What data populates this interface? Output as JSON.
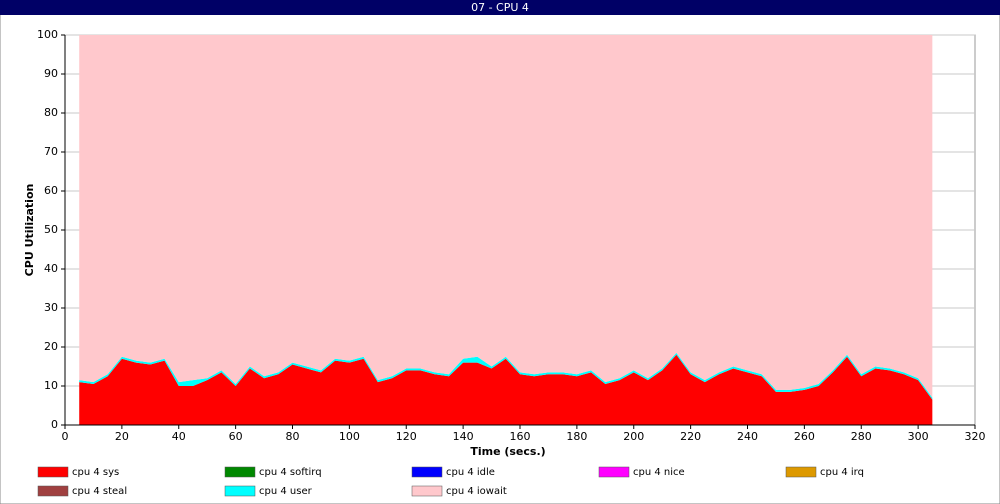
{
  "chart_data": {
    "type": "stacked-area",
    "title": "07 - CPU 4",
    "x_label": "Time (secs.)",
    "y_label": "CPU Utilization",
    "x": [
      5,
      10,
      15,
      20,
      25,
      30,
      35,
      40,
      45,
      50,
      55,
      60,
      65,
      70,
      75,
      80,
      85,
      90,
      95,
      100,
      105,
      110,
      115,
      120,
      125,
      130,
      135,
      140,
      145,
      150,
      155,
      160,
      165,
      170,
      175,
      180,
      185,
      190,
      195,
      200,
      205,
      210,
      215,
      220,
      225,
      230,
      235,
      240,
      245,
      250,
      255,
      260,
      265,
      270,
      275,
      280,
      285,
      290,
      295,
      300,
      305
    ],
    "xlim": [
      0,
      320
    ],
    "xticks": [
      0,
      20,
      40,
      60,
      80,
      100,
      120,
      140,
      160,
      180,
      200,
      220,
      240,
      260,
      280,
      300,
      320
    ],
    "ylim": [
      0,
      100
    ],
    "yticks": [
      0,
      10,
      20,
      30,
      40,
      50,
      60,
      70,
      80,
      90,
      100
    ],
    "grid": true,
    "series": [
      {
        "name": "cpu 4 sys",
        "color": "#ff0000",
        "values": [
          11,
          10.5,
          12.5,
          17,
          16,
          15.5,
          16.5,
          10,
          10,
          11.5,
          13.5,
          10,
          14.5,
          12,
          13,
          15.5,
          14.5,
          13.5,
          16.5,
          16,
          17,
          11,
          12,
          14,
          14,
          13,
          12.5,
          16,
          16,
          14.5,
          17,
          13,
          12.5,
          13,
          13,
          12.5,
          13.5,
          10.5,
          11.5,
          13.5,
          11.5,
          14,
          18,
          13,
          11,
          13,
          14.5,
          13.5,
          12.5,
          8.5,
          8.5,
          9,
          10,
          13.5,
          17.5,
          12.5,
          14.5,
          14,
          13,
          11.5,
          6.5
        ]
      },
      {
        "name": "cpu 4 softirq",
        "color": "#008800",
        "values": [
          0,
          0,
          0,
          0,
          0,
          0,
          0,
          0,
          0,
          0,
          0,
          0,
          0,
          0,
          0,
          0,
          0,
          0,
          0,
          0,
          0,
          0,
          0,
          0,
          0,
          0,
          0,
          0,
          0,
          0,
          0,
          0,
          0,
          0,
          0,
          0,
          0,
          0,
          0,
          0,
          0,
          0,
          0,
          0,
          0,
          0,
          0,
          0,
          0,
          0,
          0,
          0,
          0,
          0,
          0,
          0,
          0,
          0,
          0,
          0,
          0
        ]
      },
      {
        "name": "cpu 4 idle",
        "color": "#0000ff",
        "values": [
          0,
          0,
          0,
          0,
          0,
          0,
          0,
          0,
          0,
          0,
          0,
          0,
          0,
          0,
          0,
          0,
          0,
          0,
          0,
          0,
          0,
          0,
          0,
          0,
          0,
          0,
          0,
          0,
          0,
          0,
          0,
          0,
          0,
          0,
          0,
          0,
          0,
          0,
          0,
          0,
          0,
          0,
          0,
          0,
          0,
          0,
          0,
          0,
          0,
          0,
          0,
          0,
          0,
          0,
          0,
          0,
          0,
          0,
          0,
          0,
          0
        ]
      },
      {
        "name": "cpu 4 nice",
        "color": "#ff00ff",
        "values": [
          0,
          0,
          0,
          0,
          0,
          0,
          0,
          0,
          0,
          0,
          0,
          0,
          0,
          0,
          0,
          0,
          0,
          0,
          0,
          0,
          0,
          0,
          0,
          0,
          0,
          0,
          0,
          0,
          0,
          0,
          0,
          0,
          0,
          0,
          0,
          0,
          0,
          0,
          0,
          0,
          0,
          0,
          0,
          0,
          0,
          0,
          0,
          0,
          0,
          0,
          0,
          0,
          0,
          0,
          0,
          0,
          0,
          0,
          0,
          0,
          0
        ]
      },
      {
        "name": "cpu 4 irq",
        "color": "#dd9900",
        "values": [
          0,
          0,
          0,
          0,
          0,
          0,
          0,
          0,
          0,
          0,
          0,
          0,
          0,
          0,
          0,
          0,
          0,
          0,
          0,
          0,
          0,
          0,
          0,
          0,
          0,
          0,
          0,
          0,
          0,
          0,
          0,
          0,
          0,
          0,
          0,
          0,
          0,
          0,
          0,
          0,
          0,
          0,
          0,
          0,
          0,
          0,
          0,
          0,
          0,
          0,
          0,
          0,
          0,
          0,
          0,
          0,
          0,
          0,
          0,
          0,
          0
        ]
      },
      {
        "name": "cpu 4 steal",
        "color": "#a04040",
        "values": [
          0,
          0,
          0,
          0,
          0,
          0,
          0,
          0,
          0,
          0,
          0,
          0,
          0,
          0,
          0,
          0,
          0,
          0,
          0,
          0,
          0,
          0,
          0,
          0,
          0,
          0,
          0,
          0,
          0,
          0,
          0,
          0,
          0,
          0,
          0,
          0,
          0,
          0,
          0,
          0,
          0,
          0,
          0,
          0,
          0,
          0,
          0,
          0,
          0,
          0,
          0,
          0,
          0,
          0,
          0,
          0,
          0,
          0,
          0,
          0,
          0
        ]
      },
      {
        "name": "cpu 4 user",
        "color": "#00ffff",
        "values": [
          0.5,
          0.5,
          0.5,
          0.5,
          0.5,
          0.5,
          0.5,
          1,
          1.5,
          0.5,
          0.5,
          0.5,
          0.5,
          0.5,
          0.5,
          0.5,
          0.5,
          0.5,
          0.5,
          0.5,
          0.5,
          0.5,
          0.5,
          0.5,
          0.5,
          0.5,
          0.5,
          1,
          1.5,
          0.5,
          0.5,
          0.5,
          0.5,
          0.5,
          0.5,
          0.5,
          0.5,
          0.5,
          0.5,
          0.5,
          0.5,
          0.5,
          0.5,
          0.5,
          0.5,
          0.5,
          0.5,
          0.5,
          0.5,
          0.5,
          0.5,
          0.5,
          0.5,
          0.5,
          0.5,
          0.5,
          0.5,
          0.5,
          0.5,
          0.5,
          0.5
        ]
      },
      {
        "name": "cpu 4 iowait",
        "color": "#ffc8cc",
        "values": [
          88.5,
          89,
          87,
          82.5,
          83.5,
          84,
          83,
          89,
          88.5,
          88,
          86,
          89.5,
          85,
          87.5,
          86.5,
          84,
          85,
          86,
          83,
          83.5,
          82.5,
          88.5,
          87.5,
          85.5,
          85.5,
          86.5,
          87,
          83,
          82.5,
          85,
          82.5,
          86.5,
          87,
          86.5,
          86.5,
          87,
          86,
          89,
          88,
          86,
          88,
          85.5,
          81.5,
          86.5,
          88.5,
          86.5,
          85,
          86,
          87,
          91,
          91,
          90.5,
          89.5,
          86,
          82,
          87,
          85,
          85.5,
          86.5,
          88,
          93
        ]
      }
    ]
  }
}
